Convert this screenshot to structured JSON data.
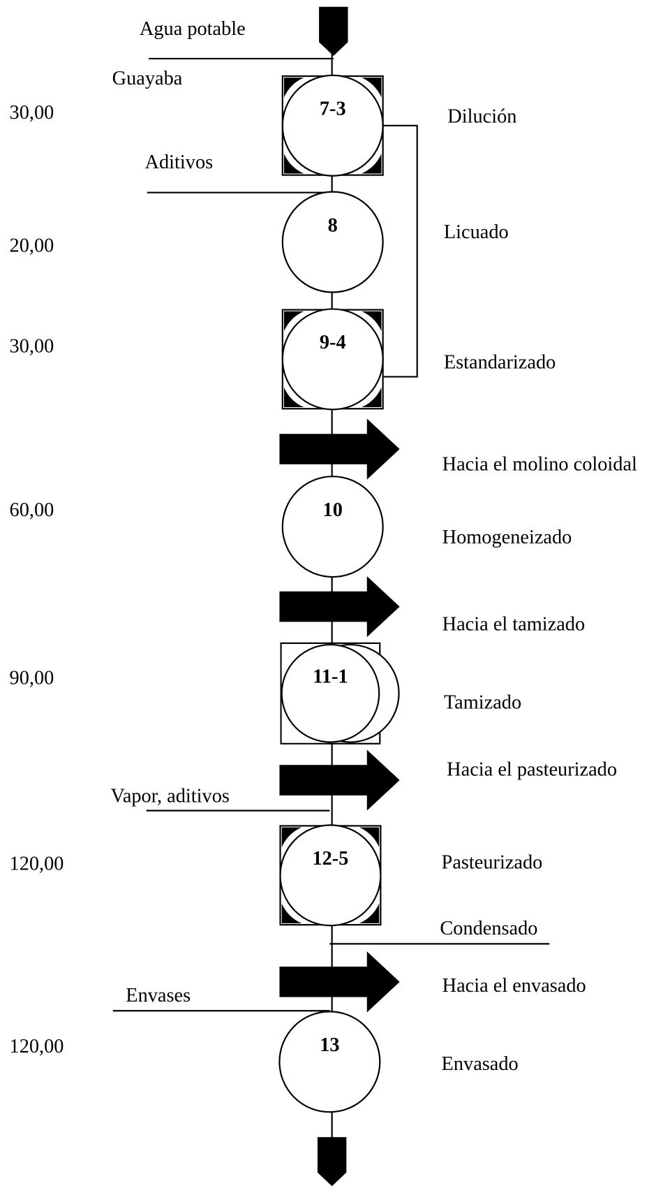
{
  "streams": [
    "Agua potable",
    "Guayaba",
    "Aditivos",
    "Vapor, aditivos",
    "Condensado",
    "Envases"
  ],
  "nodes": [
    {
      "id": "7-3",
      "time": "30,00",
      "operation": "Dilución"
    },
    {
      "id": "8",
      "time": "20,00",
      "operation": "Licuado"
    },
    {
      "id": "9-4",
      "time": "30,00",
      "operation": "Estandarizado"
    },
    {
      "id": "10",
      "time": "60,00",
      "operation": "Homogeneizado"
    },
    {
      "id": "11-1",
      "time": "90,00",
      "operation": "Tamizado"
    },
    {
      "id": "12-5",
      "time": "120,00",
      "operation": "Pasteurizado"
    },
    {
      "id": "13",
      "time": "120,00",
      "operation": "Envasado"
    }
  ],
  "transports": [
    "Hacia el molino coloidal",
    "Hacia el tamizado",
    "Hacia el pasteurizado",
    "Hacia el envasado"
  ]
}
